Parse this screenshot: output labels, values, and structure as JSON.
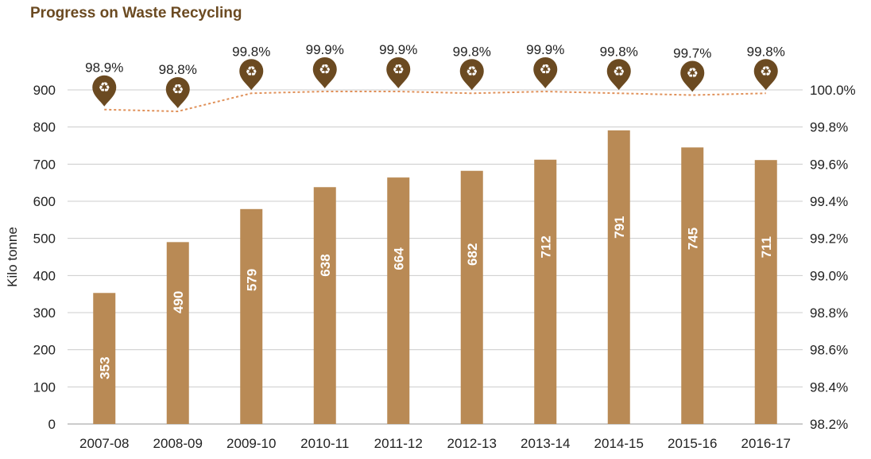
{
  "title": "Progress on Waste Recycling",
  "colors": {
    "bar": "#b98a55",
    "line": "#e0915a",
    "marker": "#6b4a21",
    "title": "#6b4a21",
    "grid": "#cccccc"
  },
  "chart_data": {
    "type": "bar",
    "title": "Progress on Waste Recycling",
    "xlabel": "",
    "ylabel": "Kilo tonne",
    "categories": [
      "2007-08",
      "2008-09",
      "2009-10",
      "2010-11",
      "2011-12",
      "2012-13",
      "2013-14",
      "2014-15",
      "2015-16",
      "2016-17"
    ],
    "series": [
      {
        "name": "",
        "type": "bar",
        "axis": "left",
        "values": [
          353,
          490,
          579,
          638,
          664,
          682,
          712,
          791,
          745,
          711
        ]
      },
      {
        "name": "",
        "type": "line",
        "axis": "right",
        "values": [
          98.9,
          98.8,
          99.8,
          99.9,
          99.9,
          99.8,
          99.9,
          99.8,
          99.7,
          99.8
        ],
        "labels": [
          "98.9%",
          "98.8%",
          "99.8%",
          "99.9%",
          "99.9%",
          "99.8%",
          "99.9%",
          "99.8%",
          "99.7%",
          "99.8%"
        ]
      }
    ],
    "ylim": [
      0,
      900
    ],
    "yticks": [
      0,
      100,
      200,
      300,
      400,
      500,
      600,
      700,
      800,
      900
    ],
    "y2lim": [
      98.2,
      100.0
    ],
    "y2ticks": [
      "98.2%",
      "98.4%",
      "98.6%",
      "98.8%",
      "99.0%",
      "99.2%",
      "99.4%",
      "99.6%",
      "99.8%",
      "100.0%"
    ],
    "grid": true,
    "marker_icon": "recycle-pin-icon"
  }
}
